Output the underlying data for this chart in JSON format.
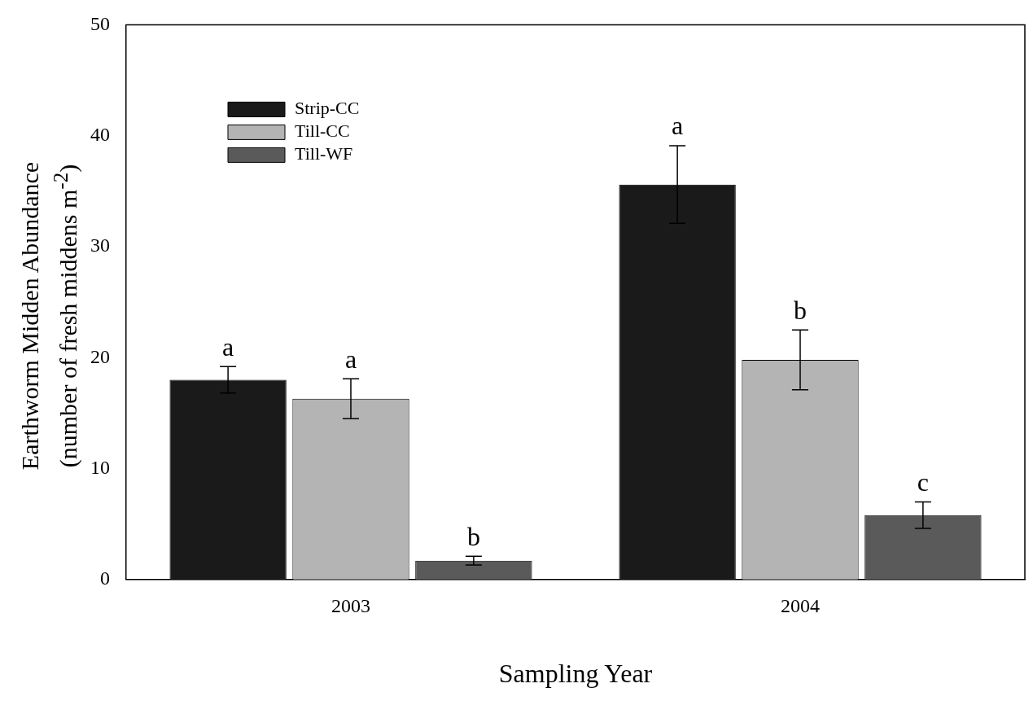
{
  "chart_data": {
    "type": "bar",
    "xlabel": "Sampling Year",
    "ylabel": "Earthworm Midden Abundance\n(number of fresh middens m$^{-2}$)",
    "categories": [
      "2003",
      "2004"
    ],
    "series": [
      {
        "name": "Strip-CC",
        "color": "#1a1a1a",
        "values": [
          18.0,
          35.6
        ],
        "errors": [
          1.2,
          3.5
        ],
        "value_labels": [
          "a",
          "a"
        ]
      },
      {
        "name": "Till-CC",
        "color": "#b4b4b4",
        "values": [
          16.3,
          19.8
        ],
        "errors": [
          1.8,
          2.7
        ],
        "value_labels": [
          "a",
          "b"
        ]
      },
      {
        "name": "Till-WF",
        "color": "#5a5a5a",
        "values": [
          1.7,
          5.8
        ],
        "errors": [
          0.4,
          1.2
        ],
        "value_labels": [
          "b",
          "c"
        ]
      }
    ],
    "ylim": [
      0,
      50
    ],
    "yticks": [
      0,
      10,
      20,
      30,
      40,
      50
    ],
    "grid": false,
    "legend": "top left"
  }
}
